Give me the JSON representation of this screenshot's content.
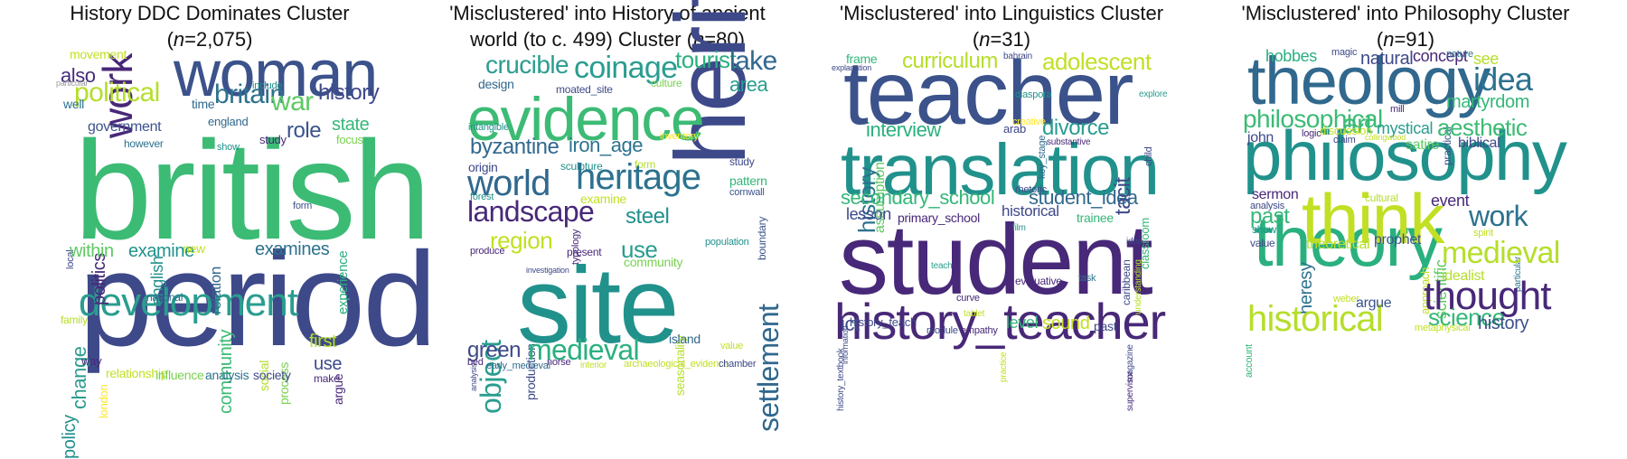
{
  "panels": [
    {
      "title_line1": "History DDC Dominates Cluster",
      "title_line2_prefix": "(",
      "title_n_symbol": "n",
      "title_n_value": "=2,075)",
      "words": [
        {
          "text": "british",
          "color": "#3cbb75"
        },
        {
          "text": "period",
          "color": "#3e4989"
        },
        {
          "text": "woman",
          "color": "#3b528b"
        },
        {
          "text": "work",
          "color": "#482878"
        },
        {
          "text": "development",
          "color": "#2a9d8f"
        },
        {
          "text": "political",
          "color": "#b5de2b"
        },
        {
          "text": "britain",
          "color": "#2c728e"
        },
        {
          "text": "war",
          "color": "#5ec962"
        },
        {
          "text": "history",
          "color": "#3e4989"
        },
        {
          "text": "also",
          "color": "#472d7b"
        },
        {
          "text": "movement",
          "color": "#c2df23"
        },
        {
          "text": "particular",
          "color": "#9a9a9a"
        },
        {
          "text": "well",
          "color": "#2c728e"
        },
        {
          "text": "time",
          "color": "#31688e"
        },
        {
          "text": "include",
          "color": "#21918c"
        },
        {
          "text": "government",
          "color": "#3b528b"
        },
        {
          "text": "england",
          "color": "#31688e"
        },
        {
          "text": "however",
          "color": "#2c728e"
        },
        {
          "text": "study",
          "color": "#482878"
        },
        {
          "text": "show",
          "color": "#21918c"
        },
        {
          "text": "role",
          "color": "#3b528b"
        },
        {
          "text": "state",
          "color": "#35b779"
        },
        {
          "text": "focus",
          "color": "#7ad151"
        },
        {
          "text": "local",
          "color": "#3e4989"
        },
        {
          "text": "politics",
          "color": "#482878"
        },
        {
          "text": "english",
          "color": "#21918c"
        },
        {
          "text": "relation",
          "color": "#31688e"
        },
        {
          "text": "form",
          "color": "#3b528b"
        },
        {
          "text": "experience",
          "color": "#2ab07f"
        },
        {
          "text": "within",
          "color": "#5ec962"
        },
        {
          "text": "examine",
          "color": "#21918c"
        },
        {
          "text": "new",
          "color": "#c2df23"
        },
        {
          "text": "examines",
          "color": "#2c728e"
        },
        {
          "text": "social",
          "color": "#b5de2b"
        },
        {
          "text": "change",
          "color": "#2a9d8f"
        },
        {
          "text": "london",
          "color": "#fde725"
        },
        {
          "text": "national",
          "color": "#31688e"
        },
        {
          "text": "community",
          "color": "#3cbb75"
        },
        {
          "text": "process",
          "color": "#7ad151"
        },
        {
          "text": "argue",
          "color": "#482878"
        },
        {
          "text": "family",
          "color": "#b5de2b"
        },
        {
          "text": "policy",
          "color": "#21918c"
        },
        {
          "text": "way",
          "color": "#482878"
        },
        {
          "text": "relationship",
          "color": "#c2df23"
        },
        {
          "text": "influence",
          "color": "#7ad151"
        },
        {
          "text": "analysis",
          "color": "#2c728e"
        },
        {
          "text": "society",
          "color": "#3e4989"
        },
        {
          "text": "first",
          "color": "#b5de2b"
        },
        {
          "text": "use",
          "color": "#3e4989"
        },
        {
          "text": "make",
          "color": "#482878"
        }
      ]
    },
    {
      "title_line1": "'Misclustered' into History of ancient",
      "title_line2_prefix": "world (to c. 499) Cluster (",
      "title_n_symbol": "n",
      "title_n_value": "=80)",
      "words": [
        {
          "text": "heritage",
          "color": "#3e4989"
        },
        {
          "text": "site",
          "color": "#21918c"
        },
        {
          "text": "evidence",
          "color": "#3cbb75"
        },
        {
          "text": "crucible",
          "color": "#2a9d8f"
        },
        {
          "text": "coinage",
          "color": "#2a9d8f"
        },
        {
          "text": "tourist",
          "color": "#2ab07f"
        },
        {
          "text": "lake",
          "color": "#31688e"
        },
        {
          "text": "design",
          "color": "#31688e"
        },
        {
          "text": "moated_site",
          "color": "#3e4989"
        },
        {
          "text": "culture",
          "color": "#7ad151"
        },
        {
          "text": "area",
          "color": "#2a9d8f"
        },
        {
          "text": "boundary",
          "color": "#3b528b"
        },
        {
          "text": "intangible",
          "color": "#21918c"
        },
        {
          "text": "byzantine",
          "color": "#31688e"
        },
        {
          "text": "iron_age",
          "color": "#2c728e"
        },
        {
          "text": "inventory",
          "color": "#fde725"
        },
        {
          "text": "origin",
          "color": "#3e4989"
        },
        {
          "text": "typology",
          "color": "#482878"
        },
        {
          "text": "sculpture",
          "color": "#21918c"
        },
        {
          "text": "form",
          "color": "#b5de2b"
        },
        {
          "text": "world",
          "color": "#31688e"
        },
        {
          "text": "heritage",
          "color": "#2c728e"
        },
        {
          "text": "study",
          "color": "#3e4989"
        },
        {
          "text": "forest",
          "color": "#21918c"
        },
        {
          "text": "examine",
          "color": "#c2df23"
        },
        {
          "text": "pattern",
          "color": "#35b779"
        },
        {
          "text": "cornwall",
          "color": "#3b528b"
        },
        {
          "text": "landscape",
          "color": "#482878"
        },
        {
          "text": "steel",
          "color": "#21918c"
        },
        {
          "text": "settlement",
          "color": "#31688e"
        },
        {
          "text": "region",
          "color": "#c2df23"
        },
        {
          "text": "use",
          "color": "#2a9d8f"
        },
        {
          "text": "produce",
          "color": "#482878"
        },
        {
          "text": "present",
          "color": "#482878"
        },
        {
          "text": "population",
          "color": "#21918c"
        },
        {
          "text": "community",
          "color": "#7ad151"
        },
        {
          "text": "investigation",
          "color": "#3e4989"
        },
        {
          "text": "object",
          "color": "#2a9d8f"
        },
        {
          "text": "production",
          "color": "#3e4989"
        },
        {
          "text": "seasonality",
          "color": "#b5de2b"
        },
        {
          "text": "analysis",
          "color": "#3e4989"
        },
        {
          "text": "island",
          "color": "#31688e"
        },
        {
          "text": "value",
          "color": "#c2df23"
        },
        {
          "text": "green",
          "color": "#3e4989"
        },
        {
          "text": "medieval",
          "color": "#2ab07f"
        },
        {
          "text": "bed",
          "color": "#482878"
        },
        {
          "text": "early_medieval",
          "color": "#31688e"
        },
        {
          "text": "norse",
          "color": "#482878"
        },
        {
          "text": "interior",
          "color": "#c2df23"
        },
        {
          "text": "archaeological_evidence",
          "color": "#c2df23"
        },
        {
          "text": "chamber",
          "color": "#3e4989"
        }
      ]
    },
    {
      "title_line1": "'Misclustered' into Linguistics Cluster",
      "title_line2_prefix": "(",
      "title_n_symbol": "n",
      "title_n_value": "=31)",
      "words": [
        {
          "text": "teacher",
          "color": "#3b528b"
        },
        {
          "text": "translation",
          "color": "#21918c"
        },
        {
          "text": "student",
          "color": "#482878"
        },
        {
          "text": "history_teacher",
          "color": "#482878"
        },
        {
          "text": "frame",
          "color": "#35b779"
        },
        {
          "text": "explanation",
          "color": "#3e4989"
        },
        {
          "text": "curriculum",
          "color": "#b5de2b"
        },
        {
          "text": "bahrain",
          "color": "#3e4989"
        },
        {
          "text": "adolescent",
          "color": "#c2df23"
        },
        {
          "text": "child",
          "color": "#3e4989"
        },
        {
          "text": "explore",
          "color": "#2a9d8f"
        },
        {
          "text": "history",
          "color": "#2c728e"
        },
        {
          "text": "assumption",
          "color": "#5ec962"
        },
        {
          "text": "diaspora",
          "color": "#21918c"
        },
        {
          "text": "key_stage",
          "color": "#31688e"
        },
        {
          "text": "creative",
          "color": "#fde725"
        },
        {
          "text": "interview",
          "color": "#2ab07f"
        },
        {
          "text": "arab",
          "color": "#3e4989"
        },
        {
          "text": "divorce",
          "color": "#2a9d8f"
        },
        {
          "text": "substantive",
          "color": "#482878"
        },
        {
          "text": "tacit",
          "color": "#3e4989"
        },
        {
          "text": "caribbean",
          "color": "#3e4989"
        },
        {
          "text": "classroom",
          "color": "#35b779"
        },
        {
          "text": "secondary_school",
          "color": "#35b779"
        },
        {
          "text": "rhetoric",
          "color": "#3e4989"
        },
        {
          "text": "student_idea",
          "color": "#31688e"
        },
        {
          "text": "lesson",
          "color": "#3e4989"
        },
        {
          "text": "primary_school",
          "color": "#482878"
        },
        {
          "text": "historical",
          "color": "#3e4989"
        },
        {
          "text": "trainee",
          "color": "#35b779"
        },
        {
          "text": "film",
          "color": "#21918c"
        },
        {
          "text": "understanding",
          "color": "#b5de2b"
        },
        {
          "text": "idea",
          "color": "#3e4989"
        },
        {
          "text": "information",
          "color": "#3e4989"
        },
        {
          "text": "teach",
          "color": "#2a9d8f"
        },
        {
          "text": "evaluative",
          "color": "#482878"
        },
        {
          "text": "task",
          "color": "#2c728e"
        },
        {
          "text": "curve",
          "color": "#482878"
        },
        {
          "text": "practice",
          "color": "#c2df23"
        },
        {
          "text": "magazine",
          "color": "#3e4989"
        },
        {
          "text": "history_textbook",
          "color": "#3e4989"
        },
        {
          "text": "tablet",
          "color": "#c2df23"
        },
        {
          "text": "ict",
          "color": "#3e4989"
        },
        {
          "text": "history_teach",
          "color": "#3e4989"
        },
        {
          "text": "module",
          "color": "#3e4989"
        },
        {
          "text": "empathy",
          "color": "#482878"
        },
        {
          "text": "level",
          "color": "#35b779"
        },
        {
          "text": "sound",
          "color": "#c2df23"
        },
        {
          "text": "past",
          "color": "#3e4989"
        },
        {
          "text": "supervisor",
          "color": "#482878"
        }
      ]
    },
    {
      "title_line1": "'Misclustered' into Philosophy Cluster",
      "title_line2_prefix": "(",
      "title_n_symbol": "n",
      "title_n_value": "=91)",
      "words": [
        {
          "text": "theology",
          "color": "#31688e"
        },
        {
          "text": "philosophy",
          "color": "#21918c"
        },
        {
          "text": "theory",
          "color": "#2ab07f"
        },
        {
          "text": "think",
          "color": "#c2df23"
        },
        {
          "text": "hobbes",
          "color": "#2ab07f"
        },
        {
          "text": "magic",
          "color": "#3e4989"
        },
        {
          "text": "natural",
          "color": "#3e4989"
        },
        {
          "text": "concept",
          "color": "#482878"
        },
        {
          "text": "nature",
          "color": "#2c728e"
        },
        {
          "text": "see",
          "color": "#b5de2b"
        },
        {
          "text": "idea",
          "color": "#2c728e"
        },
        {
          "text": "practical",
          "color": "#3b528b"
        },
        {
          "text": "martyrdom",
          "color": "#35b779"
        },
        {
          "text": "mill",
          "color": "#482878"
        },
        {
          "text": "philosophical",
          "color": "#3cbb75"
        },
        {
          "text": "art",
          "color": "#3cbb75"
        },
        {
          "text": "mystical",
          "color": "#2a9d8f"
        },
        {
          "text": "aesthetic",
          "color": "#3cbb75"
        },
        {
          "text": "discussion",
          "color": "#c2df23"
        },
        {
          "text": "john",
          "color": "#3e4989"
        },
        {
          "text": "logic",
          "color": "#482878"
        },
        {
          "text": "claim",
          "color": "#3e4989"
        },
        {
          "text": "collingwood",
          "color": "#c2df23"
        },
        {
          "text": "satire",
          "color": "#5ec962"
        },
        {
          "text": "biblical",
          "color": "#3e4989"
        },
        {
          "text": "sermon",
          "color": "#482878"
        },
        {
          "text": "analysis",
          "color": "#3e4989"
        },
        {
          "text": "cultural",
          "color": "#b5de2b"
        },
        {
          "text": "event",
          "color": "#482878"
        },
        {
          "text": "particular",
          "color": "#2c728e"
        },
        {
          "text": "past",
          "color": "#35b779"
        },
        {
          "text": "show",
          "color": "#21918c"
        },
        {
          "text": "heresy",
          "color": "#2c728e"
        },
        {
          "text": "approach",
          "color": "#c2df23"
        },
        {
          "text": "scientific",
          "color": "#5ec962"
        },
        {
          "text": "work",
          "color": "#2c728e"
        },
        {
          "text": "spirit",
          "color": "#c2df23"
        },
        {
          "text": "value",
          "color": "#3e4989"
        },
        {
          "text": "theoretical",
          "color": "#b5de2b"
        },
        {
          "text": "prophet",
          "color": "#3b528b"
        },
        {
          "text": "medieval",
          "color": "#b5de2b"
        },
        {
          "text": "account",
          "color": "#35b779"
        },
        {
          "text": "idealist",
          "color": "#b5de2b"
        },
        {
          "text": "thought",
          "color": "#482878"
        },
        {
          "text": "historical",
          "color": "#b5de2b"
        },
        {
          "text": "weber",
          "color": "#c2df23"
        },
        {
          "text": "argue",
          "color": "#3b528b"
        },
        {
          "text": "science",
          "color": "#35b779"
        },
        {
          "text": "history",
          "color": "#3b528b"
        },
        {
          "text": "metaphysical",
          "color": "#c2df23"
        }
      ]
    }
  ]
}
